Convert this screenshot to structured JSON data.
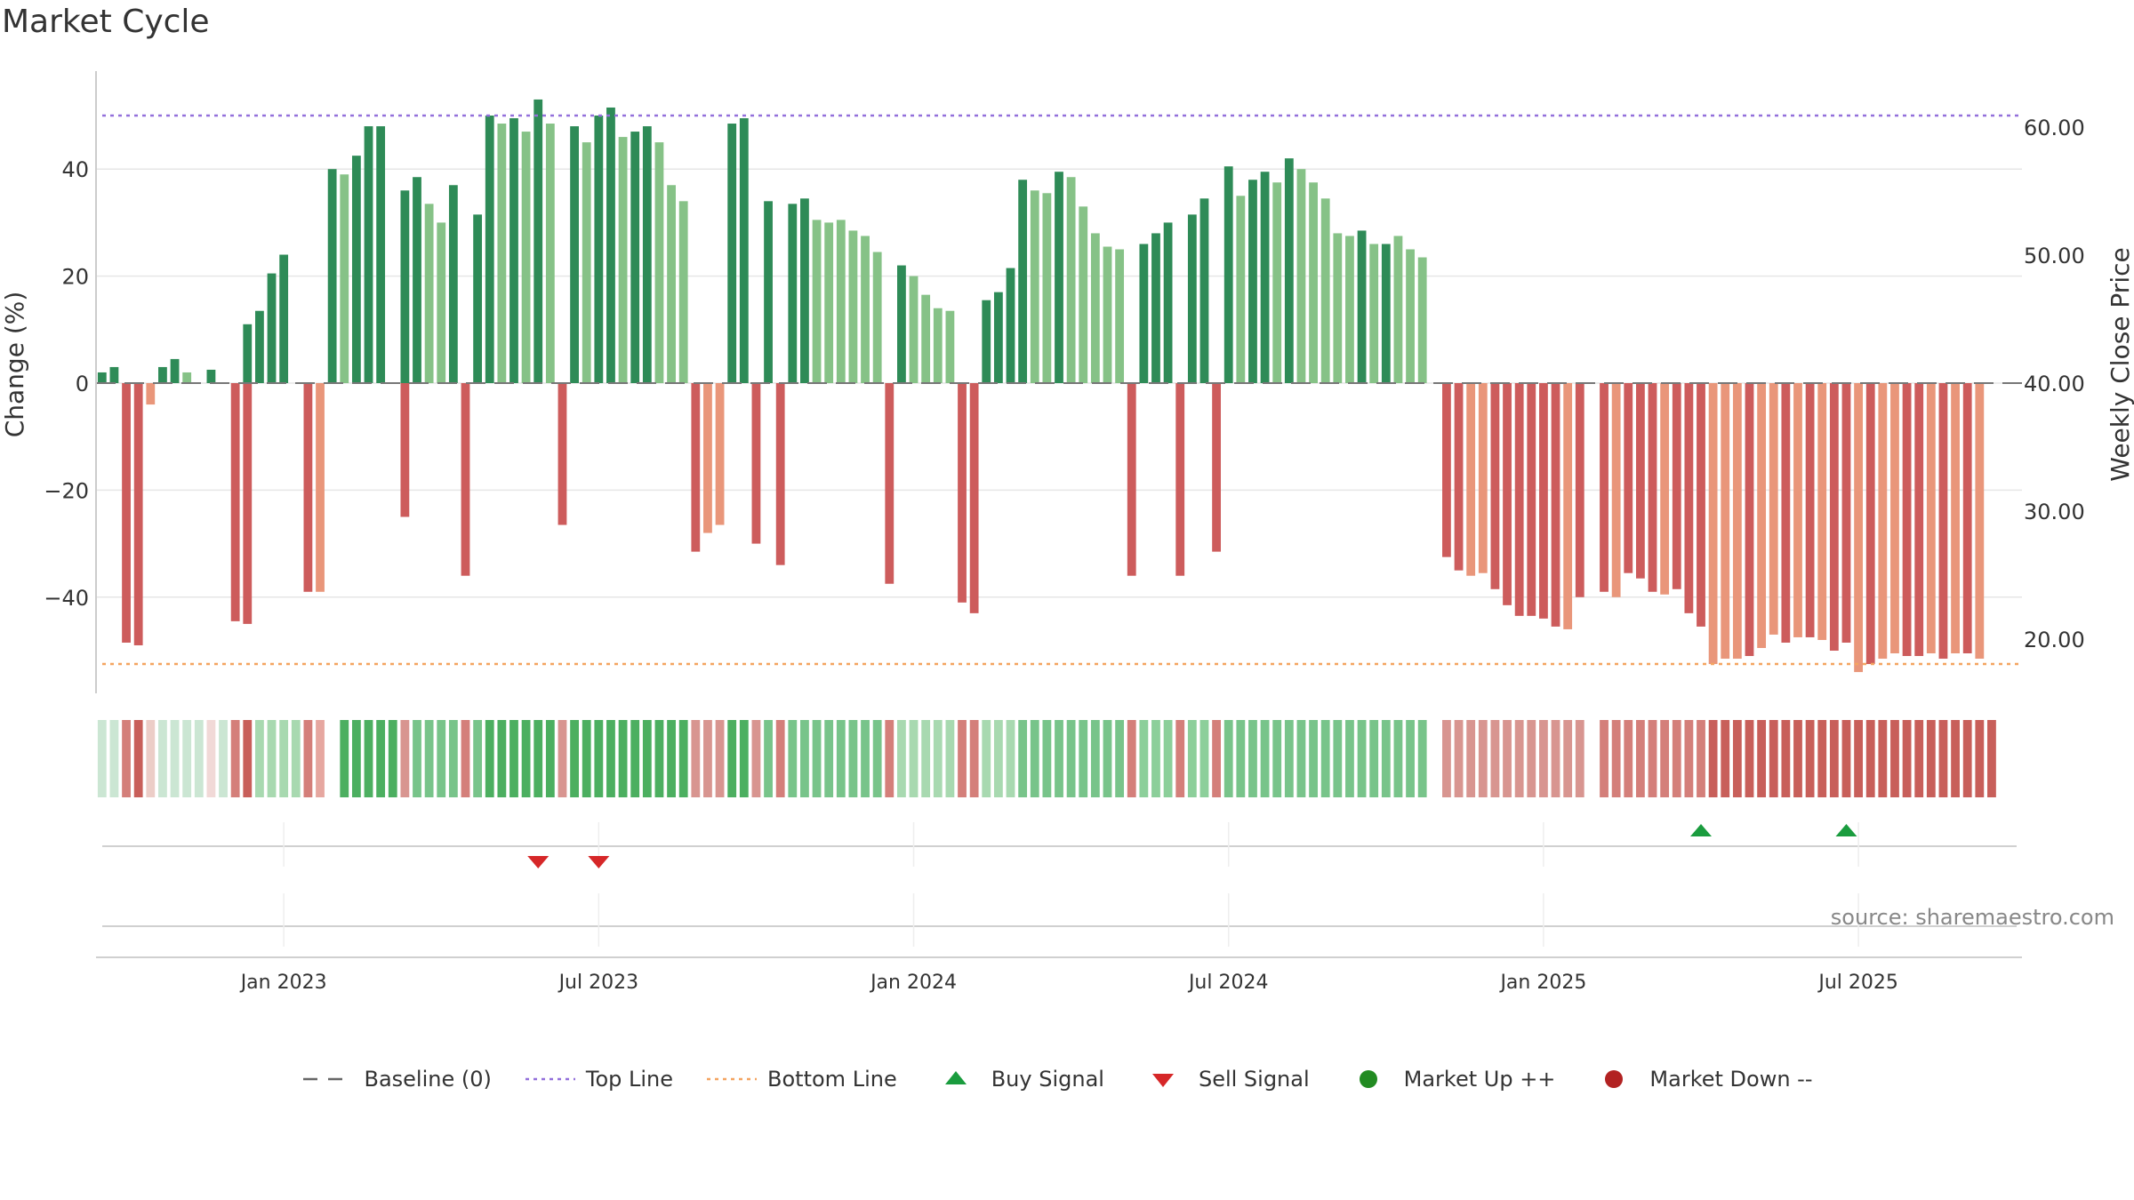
{
  "chart_data": {
    "type": "bar",
    "title": "Market Cycle",
    "ylabel": "Change (%)",
    "y2label": "Weekly Close Price",
    "ylim": [
      -58,
      58
    ],
    "y2lim": [
      17.6,
      66.0
    ],
    "yticks": [
      40,
      20,
      0,
      -20,
      -40
    ],
    "ytick_labels": [
      "40",
      "20",
      "0",
      "−20",
      "−40"
    ],
    "y2ticks": [
      60,
      50,
      40,
      30,
      20
    ],
    "y2tick_labels": [
      "60.00",
      "50.00",
      "40.00",
      "30.00",
      "20.00"
    ],
    "top_line": 50,
    "bottom_line": -52.5,
    "x_labels": [
      {
        "week": 15,
        "label": "Jan 2023"
      },
      {
        "week": 41,
        "label": "Jul 2023"
      },
      {
        "week": 67,
        "label": "Jan 2024"
      },
      {
        "week": 93,
        "label": "Jul 2024"
      },
      {
        "week": 119,
        "label": "Jan 2025"
      },
      {
        "week": 145,
        "label": "Jul 2025"
      }
    ],
    "source": "source: sharemaestro.com",
    "green_values": [
      2,
      3,
      0,
      0,
      0,
      3,
      4.5,
      2,
      0,
      2.5,
      0,
      0,
      11,
      13.5,
      20.5,
      24,
      0,
      0,
      0,
      40,
      39,
      42.5,
      48,
      48,
      0,
      36,
      38.5,
      33.5,
      30,
      37,
      0,
      31.5,
      50,
      48.5,
      49.5,
      47,
      53,
      48.5,
      0,
      48,
      45,
      50,
      51.5,
      46,
      47,
      48,
      45,
      37,
      34,
      0,
      0,
      0,
      48.5,
      49.5,
      0,
      34,
      0,
      33.5,
      34.5,
      30.5,
      30,
      30.5,
      28.5,
      27.5,
      24.5,
      0,
      22,
      20,
      16.5,
      14,
      13.5,
      0,
      0,
      15.5,
      17,
      21.5,
      38,
      36,
      35.5,
      39.5,
      38.5,
      33,
      28,
      25.5,
      25,
      0,
      26,
      28,
      30,
      0,
      31.5,
      34.5,
      0,
      40.5,
      35,
      38,
      39.5,
      37.5,
      42,
      40,
      37.5,
      34.5,
      28,
      27.5,
      28.5,
      26,
      26,
      27.5,
      25,
      23.5,
      0,
      0,
      0,
      0,
      0,
      0,
      0,
      0,
      0,
      0,
      0,
      0,
      0,
      0,
      0,
      0,
      0,
      0,
      0,
      0,
      0,
      0,
      0,
      0,
      0,
      0,
      0,
      0,
      0,
      0,
      0,
      0,
      0,
      0,
      0,
      0,
      0,
      0,
      0,
      0,
      0,
      0,
      0,
      0,
      0,
      0,
      0,
      0,
      0
    ],
    "green_tone": [
      "d",
      "d",
      "d",
      "d",
      "d",
      "d",
      "d",
      "l",
      "d",
      "d",
      "d",
      "d",
      "d",
      "d",
      "d",
      "d",
      "d",
      "d",
      "d",
      "d",
      "l",
      "d",
      "d",
      "d",
      "d",
      "d",
      "d",
      "l",
      "l",
      "d",
      "d",
      "d",
      "d",
      "l",
      "d",
      "l",
      "d",
      "l",
      "d",
      "d",
      "l",
      "d",
      "d",
      "l",
      "d",
      "d",
      "l",
      "l",
      "l",
      "d",
      "d",
      "d",
      "d",
      "d",
      "d",
      "d",
      "d",
      "d",
      "d",
      "l",
      "l",
      "l",
      "l",
      "l",
      "l",
      "d",
      "d",
      "l",
      "l",
      "l",
      "l",
      "d",
      "d",
      "d",
      "d",
      "d",
      "d",
      "l",
      "l",
      "d",
      "l",
      "l",
      "l",
      "l",
      "l",
      "d",
      "d",
      "d",
      "d",
      "d",
      "d",
      "d",
      "d",
      "d",
      "l",
      "d",
      "d",
      "l",
      "d",
      "l",
      "l",
      "l",
      "l",
      "l",
      "d",
      "l",
      "d",
      "l",
      "l",
      "l",
      "l",
      "l",
      "l",
      "l",
      "l",
      "l",
      "l",
      "l",
      "l",
      "l",
      "l",
      "l",
      "l",
      "l",
      "l",
      "l",
      "l",
      "l",
      "l",
      "l",
      "l",
      "l",
      "l",
      "l",
      "l",
      "l",
      "l",
      "l",
      "l",
      "l",
      "l",
      "l",
      "l",
      "l",
      "l",
      "l",
      "l",
      "l",
      "l",
      "l",
      "l",
      "l",
      "l",
      "l",
      "l",
      "l",
      "l",
      "l"
    ],
    "red_values": [
      0,
      0,
      48.5,
      49,
      4,
      0,
      0,
      0,
      0,
      0,
      0,
      44.5,
      45,
      0,
      0,
      0,
      0,
      39,
      39,
      0,
      0,
      0,
      0,
      0,
      0,
      25,
      0,
      0,
      0,
      0,
      36,
      0,
      0,
      0,
      0,
      0,
      0,
      0,
      26.5,
      0,
      0,
      0,
      0,
      0,
      0,
      0,
      0,
      0,
      0,
      31.5,
      28,
      26.5,
      0,
      0,
      30,
      0,
      34,
      0,
      0,
      0,
      0,
      0,
      0,
      0,
      0,
      37.5,
      0,
      0,
      0,
      0,
      0,
      41,
      43,
      0,
      0,
      0,
      0,
      0,
      0,
      0,
      0,
      0,
      0,
      0,
      0,
      36,
      0,
      0,
      0,
      36,
      0,
      0,
      31.5,
      0,
      0,
      0,
      0,
      0,
      0,
      0,
      0,
      0,
      0,
      0,
      0,
      0,
      0,
      0,
      0,
      0,
      0,
      32.5,
      35,
      36,
      35.5,
      38.5,
      41.5,
      43.5,
      43.5,
      44,
      45.5,
      46,
      40,
      0,
      39,
      40,
      35.5,
      36.5,
      39,
      39.5,
      38.5,
      43,
      45.5,
      52.5,
      51.5,
      51.5,
      51,
      49.5,
      47,
      48.5,
      47.5,
      47.5,
      48,
      50,
      48.5,
      54,
      52.5,
      51.5,
      50.5,
      51,
      51,
      50.5,
      51.5,
      50.5,
      50.5,
      51.5
    ],
    "red_tone": [
      "d",
      "d",
      "d",
      "d",
      "l",
      "d",
      "d",
      "d",
      "d",
      "d",
      "d",
      "d",
      "d",
      "d",
      "d",
      "d",
      "d",
      "d",
      "l",
      "d",
      "d",
      "d",
      "d",
      "d",
      "d",
      "d",
      "d",
      "d",
      "d",
      "d",
      "d",
      "d",
      "d",
      "d",
      "d",
      "d",
      "d",
      "d",
      "d",
      "d",
      "d",
      "d",
      "d",
      "d",
      "d",
      "d",
      "d",
      "d",
      "d",
      "d",
      "l",
      "l",
      "d",
      "d",
      "d",
      "d",
      "d",
      "d",
      "d",
      "d",
      "d",
      "d",
      "d",
      "d",
      "d",
      "d",
      "d",
      "d",
      "d",
      "d",
      "d",
      "d",
      "d",
      "d",
      "d",
      "d",
      "d",
      "d",
      "d",
      "d",
      "d",
      "d",
      "d",
      "d",
      "d",
      "d",
      "d",
      "d",
      "d",
      "d",
      "d",
      "d",
      "d",
      "d",
      "d",
      "d",
      "d",
      "d",
      "d",
      "d",
      "d",
      "d",
      "d",
      "d",
      "d",
      "d",
      "d",
      "d",
      "d",
      "d",
      "d",
      "d",
      "d",
      "l",
      "l",
      "d",
      "d",
      "d",
      "d",
      "d",
      "d",
      "l",
      "d",
      "l",
      "d",
      "l",
      "d",
      "d",
      "d",
      "l",
      "d",
      "d",
      "d",
      "l",
      "l",
      "l",
      "d",
      "l",
      "l",
      "d",
      "l",
      "d",
      "l",
      "d",
      "d",
      "l",
      "d",
      "l",
      "l",
      "d",
      "d",
      "l",
      "d",
      "l",
      "d",
      "l",
      "l",
      "d"
    ],
    "cycle_colors": [
      "#cbe6d3",
      "#cbe6d3",
      "#d47f7a",
      "#c85f5a",
      "#eccdc7",
      "#cbe6d3",
      "#cbe6d3",
      "#cbe6d3",
      "#cbe6d3",
      "#f1d9d7",
      "#cbe6d3",
      "#d47f7a",
      "#c85f5a",
      "#a8d9b0",
      "#a8d9b0",
      "#a8d9b0",
      "#a8d9b0",
      "#d47f7a",
      "#e6a7a0",
      "null",
      "#4caf60",
      "#4caf60",
      "#4caf60",
      "#4caf60",
      "#4caf60",
      "#d89590",
      "#78c48a",
      "#78c48a",
      "#78c48a",
      "#78c48a",
      "#d47f7a",
      "#78c48a",
      "#4caf60",
      "#4caf60",
      "#4caf60",
      "#4caf60",
      "#4caf60",
      "#4caf60",
      "#d89590",
      "#4caf60",
      "#4caf60",
      "#4caf60",
      "#4caf60",
      "#4caf60",
      "#4caf60",
      "#4caf60",
      "#4caf60",
      "#4caf60",
      "#4caf60",
      "#d89590",
      "#d89590",
      "#d89590",
      "#4caf60",
      "#4caf60",
      "#d89590",
      "#78c48a",
      "#d47f7a",
      "#78c48a",
      "#78c48a",
      "#78c48a",
      "#78c48a",
      "#78c48a",
      "#78c48a",
      "#78c48a",
      "#78c48a",
      "#d47f7a",
      "#a8d9b0",
      "#a8d9b0",
      "#a8d9b0",
      "#a8d9b0",
      "#a8d9b0",
      "#d47f7a",
      "#d47f7a",
      "#a8d9b0",
      "#a8d9b0",
      "#a8d9b0",
      "#78c48a",
      "#78c48a",
      "#78c48a",
      "#78c48a",
      "#78c48a",
      "#78c48a",
      "#78c48a",
      "#78c48a",
      "#78c48a",
      "#d47f7a",
      "#8ccf9a",
      "#8ccf9a",
      "#8ccf9a",
      "#d47f7a",
      "#8ccf9a",
      "#8ccf9a",
      "#d47f7a",
      "#78c48a",
      "#78c48a",
      "#78c48a",
      "#78c48a",
      "#78c48a",
      "#78c48a",
      "#78c48a",
      "#78c48a",
      "#78c48a",
      "#78c48a",
      "#78c48a",
      "#78c48a",
      "#78c48a",
      "#78c48a",
      "#78c48a",
      "#78c48a",
      "#78c48a",
      "null",
      "#d89590",
      "#d89590",
      "#d89590",
      "#d89590",
      "#d89590",
      "#d89590",
      "#d89590",
      "#d89590",
      "#d89590",
      "#d89590",
      "#d89590",
      "#d89590",
      "null",
      "#d47f7a",
      "#d47f7a",
      "#d47f7a",
      "#d47f7a",
      "#d47f7a",
      "#d47f7a",
      "#d47f7a",
      "#d47f7a",
      "#d47f7a",
      "#c85f5a",
      "#c85f5a",
      "#c85f5a",
      "#c85f5a",
      "#c85f5a",
      "#c85f5a",
      "#c85f5a",
      "#c85f5a",
      "#c85f5a",
      "#c85f5a",
      "#c85f5a",
      "#c85f5a",
      "#c85f5a",
      "#c85f5a",
      "#c85f5a",
      "#c85f5a",
      "#c85f5a",
      "#c85f5a",
      "#c85f5a",
      "#c85f5a",
      "#c85f5a",
      "#c85f5a",
      "#c85f5a",
      "#c85f5a"
    ],
    "signals": [
      {
        "type": "sell",
        "week": 36.5
      },
      {
        "type": "sell",
        "week": 41.5
      },
      {
        "type": "buy",
        "week": 132.5
      },
      {
        "type": "buy",
        "week": 144.5
      }
    ],
    "legend": [
      "Baseline (0)",
      "Top Line",
      "Bottom Line",
      "Buy Signal",
      "Sell Signal",
      "Market Up ++",
      "Market Down --"
    ],
    "colors": {
      "green_dark": "#2e8b57",
      "green_light": "#86c287",
      "red_dark": "#cd5c5c",
      "red_light": "#e9967a",
      "top_line": "#9370db",
      "bottom_line": "#f4a460",
      "buy": "#1a9c3e",
      "sell": "#d62728",
      "market_up": "#228b22",
      "market_down": "#b22222"
    }
  }
}
